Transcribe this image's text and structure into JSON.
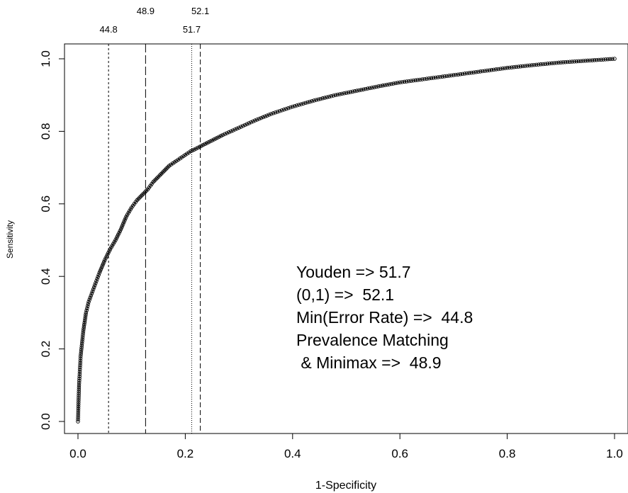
{
  "chart_data": {
    "type": "line",
    "title": "",
    "xlabel": "1-Specificity",
    "ylabel": "Sensitivity",
    "xlim": [
      0,
      1
    ],
    "ylim": [
      0,
      1
    ],
    "x_ticks": [
      "0.0",
      "0.2",
      "0.4",
      "0.6",
      "0.8",
      "1.0"
    ],
    "y_ticks": [
      "0.0",
      "0.2",
      "0.4",
      "0.6",
      "0.8",
      "1.0"
    ],
    "grid": false,
    "series": [
      {
        "marker": "open-circle",
        "x": [
          0.0,
          0.002,
          0.005,
          0.01,
          0.015,
          0.02,
          0.03,
          0.04,
          0.05,
          0.06,
          0.07,
          0.08,
          0.09,
          0.1,
          0.11,
          0.12,
          0.13,
          0.14,
          0.15,
          0.16,
          0.17,
          0.18,
          0.19,
          0.2,
          0.21,
          0.22,
          0.23,
          0.25,
          0.27,
          0.3,
          0.33,
          0.36,
          0.4,
          0.44,
          0.48,
          0.52,
          0.56,
          0.6,
          0.65,
          0.7,
          0.75,
          0.8,
          0.85,
          0.9,
          0.95,
          1.0
        ],
        "y": [
          0.0,
          0.1,
          0.18,
          0.25,
          0.3,
          0.33,
          0.37,
          0.41,
          0.445,
          0.475,
          0.5,
          0.53,
          0.565,
          0.59,
          0.61,
          0.625,
          0.64,
          0.66,
          0.675,
          0.69,
          0.705,
          0.715,
          0.725,
          0.735,
          0.745,
          0.752,
          0.76,
          0.775,
          0.79,
          0.81,
          0.83,
          0.848,
          0.868,
          0.885,
          0.9,
          0.912,
          0.924,
          0.935,
          0.945,
          0.955,
          0.965,
          0.975,
          0.983,
          0.99,
          0.995,
          1.0
        ]
      }
    ],
    "cutoff_lines": [
      {
        "label": "44.8",
        "x": 0.057,
        "style": "short-dash"
      },
      {
        "label": "48.9",
        "x": 0.126,
        "style": "long-dash"
      },
      {
        "label": "51.7",
        "x": 0.212,
        "style": "dotted"
      },
      {
        "label": "52.1",
        "x": 0.228,
        "style": "dash"
      }
    ],
    "annotations": [
      "Youden => 51.7",
      "(0,1) =>  52.1",
      "Min(Error Rate) =>  44.8",
      "Prevalence Matching",
      " & Minimax =>  48.9"
    ]
  }
}
